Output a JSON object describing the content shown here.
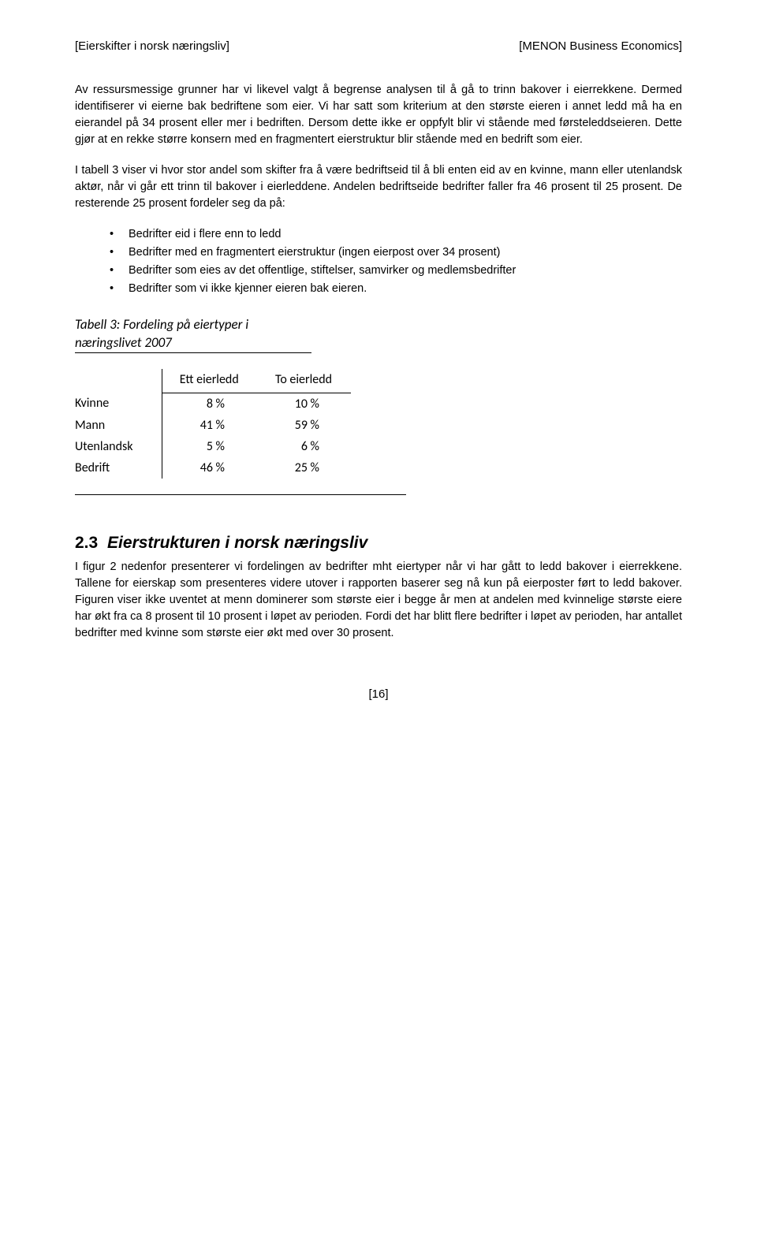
{
  "header": {
    "left": "[Eierskifter i norsk næringsliv]",
    "right": "[MENON Business Economics]"
  },
  "paragraphs": {
    "p1": "Av ressursmessige grunner har vi likevel valgt å begrense analysen til å gå to trinn bakover i eierrekkene. Dermed identifiserer vi eierne bak bedriftene som eier. Vi har satt som kriterium at den største eieren i annet ledd må ha en eierandel på 34 prosent eller mer i bedriften. Dersom dette ikke er oppfylt blir vi stående med førsteleddseieren. Dette gjør at en rekke større konsern med en fragmentert eierstruktur blir stående med en bedrift som eier.",
    "p2": "I tabell 3 viser vi hvor stor andel som skifter fra å være bedriftseid til å bli enten eid av en kvinne, mann eller utenlandsk aktør, når vi går ett trinn til bakover i eierleddene. Andelen bedriftseide bedrifter faller fra 46 prosent til 25 prosent. De resterende 25 prosent fordeler seg da på:",
    "p3": "I figur 2 nedenfor presenterer vi fordelingen av bedrifter mht eiertyper når vi har gått to ledd bakover i eierrekkene. Tallene for eierskap som presenteres videre utover i rapporten baserer seg nå kun på eierposter ført to ledd bakover. Figuren viser ikke uventet at menn dominerer som største eier i begge år men at andelen med kvinnelige største eiere har økt fra ca 8 prosent til 10 prosent i løpet av perioden. Fordi det har blitt flere bedrifter i løpet av perioden, har antallet bedrifter med kvinne som største eier økt med over 30 prosent."
  },
  "bullets": {
    "b1": "Bedrifter eid i flere enn to ledd",
    "b2": "Bedrifter med en fragmentert eierstruktur (ingen eierpost over 34 prosent)",
    "b3": "Bedrifter som eies av det offentlige, stiftelser, samvirker og medlemsbedrifter",
    "b4": "Bedrifter som vi ikke kjenner eieren bak eieren."
  },
  "table": {
    "title_line1": "Tabell 3: Fordeling på eiertyper i",
    "title_line2": "næringslivet 2007",
    "columns": {
      "c1": "Ett eierledd",
      "c2": "To eierledd"
    },
    "rows": {
      "r1": {
        "label": "Kvinne",
        "v1": "8 %",
        "v2": "10 %"
      },
      "r2": {
        "label": "Mann",
        "v1": "41 %",
        "v2": "59 %"
      },
      "r3": {
        "label": "Utenlandsk",
        "v1": "5 %",
        "v2": "6 %"
      },
      "r4": {
        "label": "Bedrift",
        "v1": "46 %",
        "v2": "25 %"
      }
    }
  },
  "section": {
    "number": "2.3",
    "title": "Eierstrukturen i norsk næringsliv"
  },
  "footer": {
    "page": "[16]"
  }
}
